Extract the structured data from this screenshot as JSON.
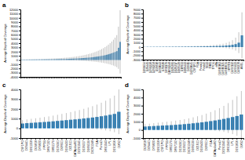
{
  "chart_data": [
    {
      "type": "bar",
      "title": "a",
      "ylabel": "Average Depth of Coverage",
      "categories": [
        null,
        null,
        null,
        null,
        null,
        null,
        null,
        null,
        null,
        null,
        null,
        null,
        null,
        null,
        null,
        null,
        null,
        null,
        null,
        null,
        null,
        null,
        null,
        null,
        null,
        null,
        null,
        null,
        null,
        null,
        null,
        null,
        null,
        null,
        null,
        null,
        null,
        null,
        null,
        null,
        null,
        null,
        null,
        null,
        null,
        null,
        null,
        null,
        null,
        null,
        null,
        null,
        null,
        null,
        null,
        null,
        null,
        null,
        null,
        null
      ],
      "values": [
        80,
        85,
        90,
        95,
        100,
        105,
        108,
        112,
        116,
        120,
        125,
        130,
        135,
        140,
        146,
        152,
        158,
        165,
        172,
        180,
        188,
        197,
        206,
        216,
        227,
        238,
        250,
        263,
        277,
        292,
        308,
        325,
        344,
        364,
        386,
        410,
        436,
        464,
        494,
        526,
        561,
        599,
        640,
        685,
        734,
        788,
        847,
        912,
        983,
        1060,
        1145,
        1240,
        1346,
        1464,
        1596,
        1744,
        1910,
        2100,
        2900,
        4300
      ],
      "errors": [
        60,
        63,
        66,
        70,
        74,
        78,
        82,
        86,
        90,
        95,
        100,
        106,
        112,
        118,
        125,
        133,
        141,
        150,
        160,
        171,
        183,
        196,
        210,
        225,
        242,
        260,
        280,
        302,
        326,
        352,
        380,
        410,
        442,
        477,
        515,
        557,
        603,
        652,
        706,
        765,
        829,
        898,
        973,
        1055,
        1145,
        1244,
        1353,
        1472,
        1604,
        1750,
        1912,
        2093,
        2295,
        2522,
        2778,
        3068,
        3400,
        3800,
        5000,
        7500
      ],
      "ylim": [
        -4000,
        12000
      ],
      "yticks": [
        -4000,
        -3000,
        -2000,
        -1000,
        0,
        1000,
        2000,
        3000,
        4000,
        5000,
        6000,
        7000,
        8000,
        9000,
        10000,
        11000,
        12000
      ]
    },
    {
      "type": "bar",
      "title": "b",
      "ylabel": "Average Depth of Coverage",
      "categories": [
        "D1S1656",
        "D2S441",
        "D2S1338",
        "D3S1358",
        "D5S818",
        "D6S1043",
        "D7S820",
        "D8S1179",
        "D10S1248",
        "D12S391",
        "D13S317",
        "D16S539",
        "D18S51",
        "D19S433",
        "D21S11",
        "D22S1045",
        "CSF1PO",
        "FGA",
        "PentaD",
        "PentaE",
        "SE33",
        "TH01",
        "TPOX",
        "vWA",
        "DXS10103",
        "DXS10135",
        "DXS10074",
        "HPRTB",
        "DXS7132",
        "DXS7423",
        "DXS8378",
        "AMEL"
      ],
      "values": [
        40,
        50,
        55,
        60,
        65,
        68,
        72,
        76,
        80,
        85,
        90,
        95,
        100,
        108,
        116,
        125,
        135,
        146,
        158,
        172,
        188,
        206,
        227,
        250,
        277,
        310,
        360,
        430,
        540,
        700,
        1050,
        2800
      ],
      "errors": [
        30,
        36,
        40,
        44,
        48,
        52,
        56,
        60,
        65,
        70,
        75,
        82,
        90,
        100,
        110,
        122,
        136,
        152,
        170,
        192,
        218,
        250,
        290,
        340,
        410,
        500,
        640,
        840,
        1100,
        1550,
        2500,
        5500
      ],
      "ylim": [
        -3000,
        9000
      ],
      "yticks": [
        -3000,
        -2000,
        -1000,
        0,
        1000,
        2000,
        3000,
        4000,
        5000,
        6000,
        7000,
        8000,
        9000
      ]
    },
    {
      "type": "bar",
      "title": "c",
      "ylabel": "Average Depth of Coverage",
      "categories": [
        "CSF1PO",
        "D2S441",
        "D3S1358",
        "D5S818",
        "D7S820",
        "FPP1B",
        "D8S7132",
        "D8S1179",
        "D12S391",
        "D18S51",
        "D19S433",
        "D21S11",
        "GATAp4s462",
        "D22S1045",
        "D13S317",
        "D16S539",
        "D10S1248",
        "FGA",
        "PentaD",
        "D6S1043",
        "LPL",
        "D1S1656",
        "DXS2"
      ],
      "values": [
        490,
        530,
        560,
        590,
        620,
        650,
        680,
        720,
        760,
        800,
        840,
        880,
        920,
        960,
        1010,
        1060,
        1110,
        1170,
        1240,
        1310,
        1390,
        1480,
        1700
      ],
      "errors": [
        350,
        385,
        415,
        445,
        475,
        510,
        545,
        585,
        630,
        680,
        730,
        790,
        855,
        920,
        995,
        1080,
        1170,
        1270,
        1390,
        1530,
        1690,
        1880,
        2300
      ],
      "ylim": [
        -1000,
        4000
      ],
      "yticks": [
        -1000,
        0,
        1000,
        2000,
        3000,
        4000
      ]
    },
    {
      "type": "bar",
      "title": "d",
      "ylabel": "Average Depth of Coverage",
      "categories": [
        "D5S818",
        "D2S441",
        "D7S820",
        "D3S1358",
        "CSF1PO",
        "FPP1B",
        "D8S1179",
        "D8S7132",
        "D12S391",
        "D13S317",
        "D10S1248",
        "D16S539",
        "D21S11",
        "D19S433",
        "D18S51",
        "FGA",
        "GATAp4s462",
        "PentaD",
        "D22S1045",
        "D6S1043",
        "LPL",
        "D1S1656",
        "DXS2"
      ],
      "values": [
        420,
        450,
        480,
        510,
        540,
        568,
        596,
        630,
        670,
        715,
        765,
        820,
        878,
        940,
        1010,
        1090,
        1170,
        1260,
        1360,
        1470,
        1590,
        1720,
        1900
      ],
      "errors": [
        300,
        325,
        355,
        385,
        415,
        445,
        477,
        515,
        560,
        610,
        668,
        735,
        810,
        898,
        1000,
        1120,
        1260,
        1420,
        1610,
        1840,
        2110,
        2440,
        2900
      ],
      "ylim": [
        -1000,
        5000
      ],
      "yticks": [
        -1000,
        0,
        1000,
        2000,
        3000,
        4000,
        5000
      ]
    }
  ]
}
